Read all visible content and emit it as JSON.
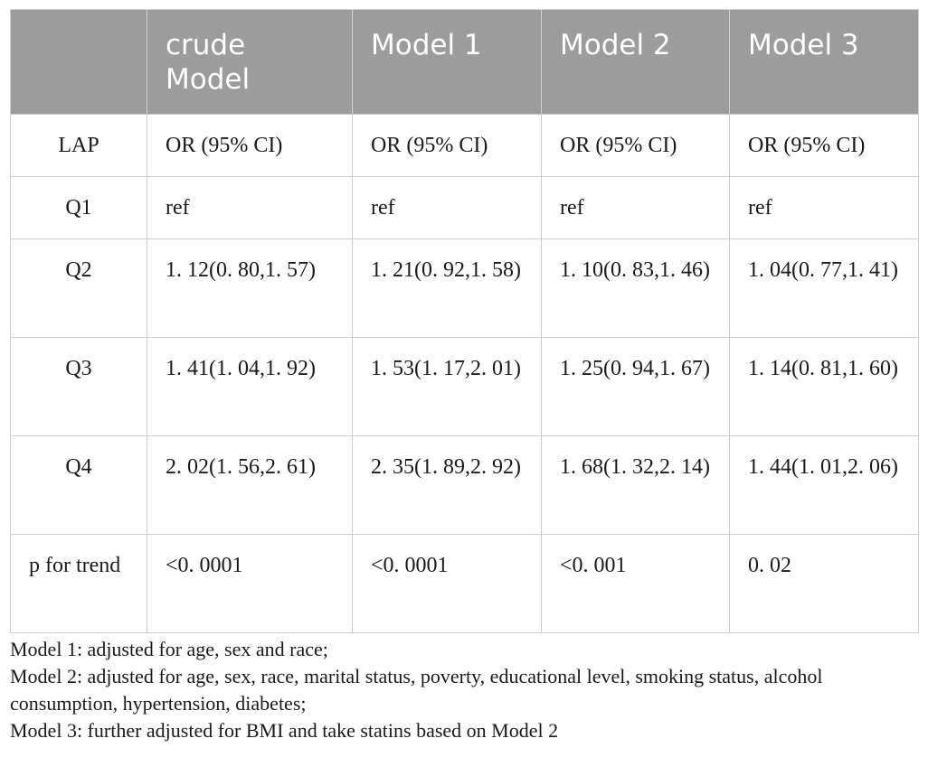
{
  "table": {
    "headers": [
      "",
      "crude Model",
      "Model 1",
      "Model 2",
      "Model 3"
    ],
    "rows": [
      {
        "label": "LAP",
        "cells": [
          "OR (95% CI)",
          "OR (95% CI)",
          "OR (95% CI)",
          "OR (95% CI)"
        ]
      },
      {
        "label": "Q1",
        "cells": [
          "ref",
          "ref",
          "ref",
          "ref"
        ]
      },
      {
        "label": "Q2",
        "cells": [
          "1. 12(0. 80,1. 57)",
          "1. 21(0. 92,1. 58)",
          "1. 10(0. 83,1. 46)",
          "1. 04(0. 77,1. 41)"
        ]
      },
      {
        "label": "Q3",
        "cells": [
          "1. 41(1. 04,1. 92)",
          "1. 53(1. 17,2. 01)",
          "1. 25(0. 94,1. 67)",
          "1. 14(0. 81,1. 60)"
        ]
      },
      {
        "label": "Q4",
        "cells": [
          "2. 02(1. 56,2. 61)",
          "2. 35(1. 89,2. 92)",
          "1. 68(1. 32,2. 14)",
          "1. 44(1. 01,2. 06)"
        ]
      },
      {
        "label": "p for trend",
        "cells": [
          "<0. 0001",
          "<0. 0001",
          "<0. 001",
          "0. 02"
        ]
      }
    ],
    "header_bg": "#9c9c9c",
    "header_text_color": "#ffffff",
    "border_color": "#cfcfcf"
  },
  "notes": [
    "Model 1: adjusted for age, sex and race;",
    "Model 2: adjusted for age, sex, race, marital status, poverty, educational level, smoking status, alcohol consumption, hypertension, diabetes;",
    "Model 3: further adjusted for BMI and take statins based on Model 2"
  ]
}
